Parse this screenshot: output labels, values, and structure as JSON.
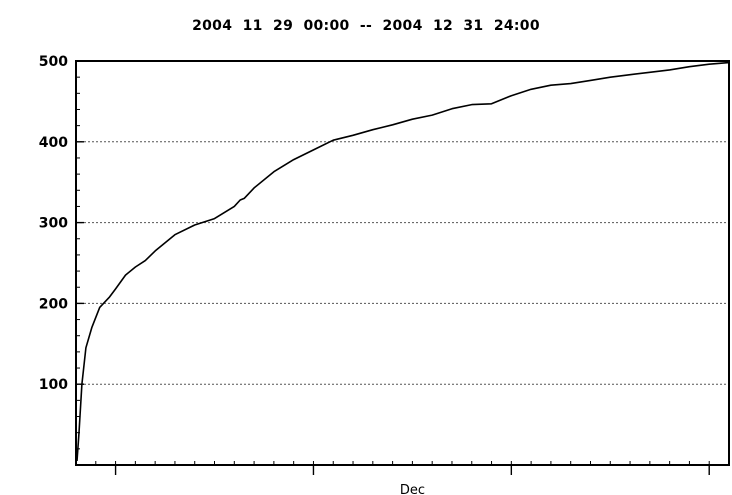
{
  "title": "",
  "subtitle": "2004  11  29  00:00  --  2004  12  31  24:00",
  "chart_data": {
    "type": "line",
    "x_start": "2004-11-29 00:00",
    "x_end": "2004-12-31 24:00",
    "x_unit": "days since 2004-11-29 00:00",
    "xlim": [
      0,
      33
    ],
    "ylim": [
      0,
      500
    ],
    "yticks": [
      100,
      200,
      300,
      400,
      500
    ],
    "xlabel": "Dec",
    "ylabel": "",
    "grid": "horizontal dotted at 100, 200, 300, 400",
    "x_major_ticks_days": [
      2,
      12,
      22,
      32
    ],
    "series": [
      {
        "name": "",
        "x": [
          0.05,
          0.15,
          0.3,
          0.5,
          0.8,
          1.2,
          1.7,
          2.0,
          2.5,
          3.0,
          3.5,
          4.0,
          5.0,
          6.0,
          7.0,
          8.0,
          8.3,
          8.5,
          9.0,
          10.0,
          11.0,
          12.0,
          13.0,
          14.0,
          15.0,
          16.0,
          17.0,
          18.0,
          19.0,
          20.0,
          21.0,
          22.0,
          23.0,
          24.0,
          25.0,
          26.0,
          27.0,
          28.0,
          29.0,
          30.0,
          31.0,
          32.0,
          33.0
        ],
        "y": [
          5,
          40,
          100,
          145,
          170,
          195,
          208,
          218,
          235,
          245,
          253,
          265,
          285,
          297,
          305,
          320,
          328,
          330,
          343,
          363,
          378,
          390,
          402,
          408,
          415,
          421,
          428,
          433,
          441,
          446,
          447,
          457,
          465,
          470,
          472,
          476,
          480,
          483,
          486,
          489,
          493,
          496,
          498
        ]
      }
    ]
  }
}
